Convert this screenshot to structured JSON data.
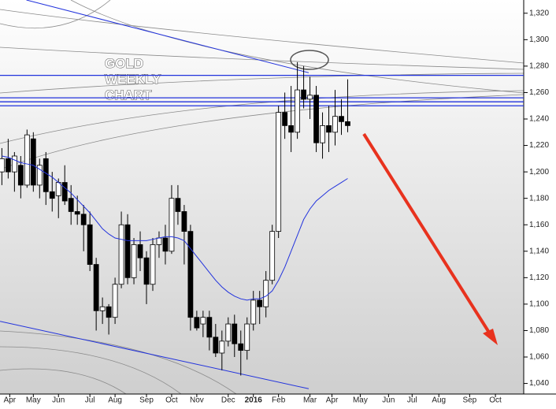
{
  "chart_data": {
    "type": "candlestick",
    "annotation": "GOLD\nWEEKLY\nCHART",
    "xlim": [
      -0.3,
      83
    ],
    "xticks": [
      {
        "value": 1.25,
        "label": "Apr"
      },
      {
        "value": 5,
        "label": "May"
      },
      {
        "value": 9,
        "label": "Jun"
      },
      {
        "value": 14,
        "label": "Jul"
      },
      {
        "value": 18,
        "label": "Aug"
      },
      {
        "value": 23,
        "label": "Sep"
      },
      {
        "value": 27,
        "label": "Oct"
      },
      {
        "value": 31,
        "label": "Nov"
      },
      {
        "value": 36,
        "label": "Dec"
      },
      {
        "value": 40,
        "label": "2016"
      },
      {
        "value": 44,
        "label": "Feb"
      },
      {
        "value": 49,
        "label": "Mar"
      },
      {
        "value": 52.5,
        "label": "Apr"
      },
      {
        "value": 57,
        "label": "May"
      },
      {
        "value": 61.5,
        "label": "Jun"
      },
      {
        "value": 65.25,
        "label": "Jul"
      },
      {
        "value": 69.5,
        "label": "Aug"
      },
      {
        "value": 74.4,
        "label": "Sep"
      },
      {
        "value": 78.5,
        "label": "Oct"
      }
    ],
    "ylim": [
      1032,
      1330
    ],
    "yticks": [
      {
        "value": 1040,
        "label": "1,040"
      },
      {
        "value": 1060,
        "label": "1,060"
      },
      {
        "value": 1080,
        "label": "1,080"
      },
      {
        "value": 1100,
        "label": "1,100"
      },
      {
        "value": 1120,
        "label": "1,120"
      },
      {
        "value": 1140,
        "label": "1,140"
      },
      {
        "value": 1160,
        "label": "1,160"
      },
      {
        "value": 1180,
        "label": "1,180"
      },
      {
        "value": 1200,
        "label": "1,200"
      },
      {
        "value": 1220,
        "label": "1,220"
      },
      {
        "value": 1240,
        "label": "1,240"
      },
      {
        "value": 1260,
        "label": "1,260"
      },
      {
        "value": 1280,
        "label": "1,280"
      },
      {
        "value": 1300,
        "label": "1,300"
      },
      {
        "value": 1320,
        "label": "1,320"
      }
    ],
    "up_color": "#ffffff",
    "down_color": "#000000",
    "open": [
      1200,
      1210,
      1200,
      1205,
      1190,
      1225,
      1190,
      1210,
      1185,
      1182,
      1192,
      1180,
      1170,
      1168,
      1160,
      1130,
      1095,
      1098,
      1090,
      1115,
      1160,
      1120,
      1145,
      1135,
      1115,
      1145,
      1150,
      1140,
      1180,
      1170,
      1155,
      1090,
      1085,
      1090,
      1075,
      1063,
      1072,
      1085,
      1070,
      1065,
      1085,
      1103,
      1098,
      1118,
      1155,
      1245,
      1235,
      1230,
      1262,
      1255,
      1258,
      1222,
      1235,
      1230,
      1242,
      1238
    ],
    "high": [
      1218,
      1225,
      1215,
      1212,
      1232,
      1230,
      1210,
      1215,
      1200,
      1195,
      1205,
      1190,
      1182,
      1175,
      1170,
      1135,
      1105,
      1100,
      1120,
      1170,
      1168,
      1150,
      1155,
      1140,
      1150,
      1155,
      1160,
      1190,
      1190,
      1175,
      1160,
      1095,
      1095,
      1095,
      1085,
      1080,
      1090,
      1092,
      1080,
      1090,
      1110,
      1110,
      1125,
      1160,
      1250,
      1260,
      1265,
      1283,
      1280,
      1272,
      1265,
      1245,
      1250,
      1262,
      1255,
      1270
    ],
    "low": [
      1190,
      1195,
      1185,
      1180,
      1188,
      1185,
      1180,
      1175,
      1170,
      1165,
      1175,
      1160,
      1160,
      1140,
      1125,
      1080,
      1085,
      1077,
      1085,
      1112,
      1115,
      1115,
      1125,
      1100,
      1110,
      1135,
      1130,
      1138,
      1160,
      1130,
      1080,
      1080,
      1075,
      1065,
      1060,
      1050,
      1068,
      1060,
      1046,
      1058,
      1080,
      1085,
      1090,
      1115,
      1150,
      1225,
      1215,
      1225,
      1248,
      1240,
      1215,
      1210,
      1215,
      1220,
      1228,
      1230
    ],
    "close": [
      1210,
      1200,
      1212,
      1190,
      1228,
      1190,
      1205,
      1185,
      1180,
      1192,
      1178,
      1170,
      1168,
      1160,
      1130,
      1095,
      1098,
      1090,
      1115,
      1160,
      1120,
      1145,
      1135,
      1115,
      1145,
      1150,
      1140,
      1180,
      1170,
      1155,
      1090,
      1082,
      1090,
      1075,
      1063,
      1072,
      1085,
      1070,
      1065,
      1085,
      1103,
      1098,
      1118,
      1155,
      1245,
      1235,
      1230,
      1262,
      1255,
      1258,
      1222,
      1235,
      1230,
      1242,
      1238,
      1235
    ],
    "series": [
      {
        "color": "#2233dd",
        "values": [
          1212,
          1211,
          1209,
          1207,
          1206,
          1205,
          1202,
          1199,
          1196,
          1192,
          1188,
          1184,
          1179,
          1174,
          1169,
          1163,
          1157,
          1153,
          1150,
          1149,
          1148,
          1148,
          1148,
          1148,
          1149,
          1150,
          1151,
          1151,
          1150,
          1148,
          1142,
          1136,
          1130,
          1124,
          1118,
          1113,
          1109,
          1106,
          1104,
          1103,
          1104,
          1104,
          1106,
          1110,
          1118,
          1128,
          1140,
          1152,
          1164,
          1172,
          1178,
          1182,
          1186,
          1189,
          1192,
          1195
        ]
      }
    ],
    "levels": [
      1273,
      1256,
      1253,
      1250
    ],
    "level_color": "#2233dd",
    "trend_lines": [
      [
        [
          3.9,
          1330
        ],
        [
          48.8,
          1275
        ]
      ],
      [
        [
          -0.3,
          1087
        ],
        [
          48.8,
          1036
        ]
      ]
    ]
  }
}
